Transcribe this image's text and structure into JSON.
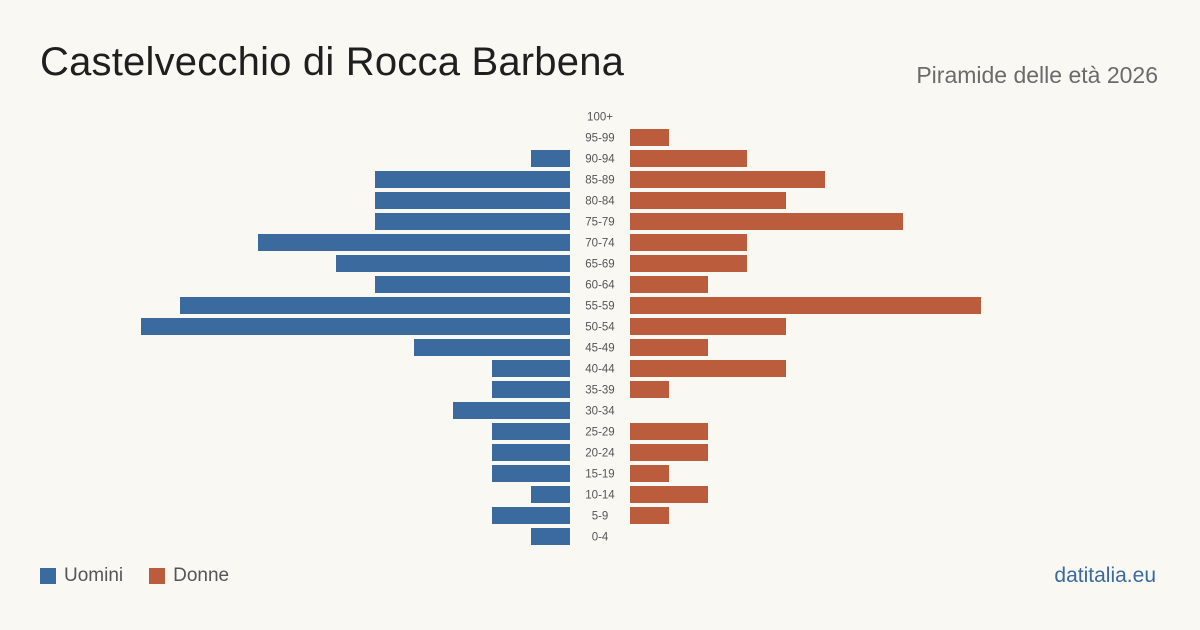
{
  "title": "Castelvecchio di Rocca Barbena",
  "subtitle": "Piramide delle età 2026",
  "brand": "datitalia.eu",
  "colors": {
    "men": "#3a6a9e",
    "women": "#bb5d3c"
  },
  "legend": {
    "men": "Uomini",
    "women": "Donne"
  },
  "chart_data": {
    "type": "bar",
    "orientation": "horizontal-population-pyramid",
    "categories": [
      "100+",
      "95-99",
      "90-94",
      "85-89",
      "80-84",
      "75-79",
      "70-74",
      "65-69",
      "60-64",
      "55-59",
      "50-54",
      "45-49",
      "40-44",
      "35-39",
      "30-34",
      "25-29",
      "20-24",
      "15-19",
      "10-14",
      "5-9",
      "0-4"
    ],
    "series": [
      {
        "name": "Uomini",
        "values": [
          0,
          0,
          1,
          5,
          5,
          5,
          8,
          6,
          5,
          10,
          11,
          4,
          2,
          2,
          3,
          2,
          2,
          2,
          1,
          2,
          1
        ]
      },
      {
        "name": "Donne",
        "values": [
          0,
          1,
          3,
          5,
          4,
          7,
          3,
          3,
          2,
          9,
          4,
          2,
          4,
          1,
          0,
          2,
          2,
          1,
          2,
          1,
          0
        ]
      }
    ],
    "xlim": [
      0,
      11
    ],
    "legend_position": "bottom-left",
    "grid": false
  }
}
